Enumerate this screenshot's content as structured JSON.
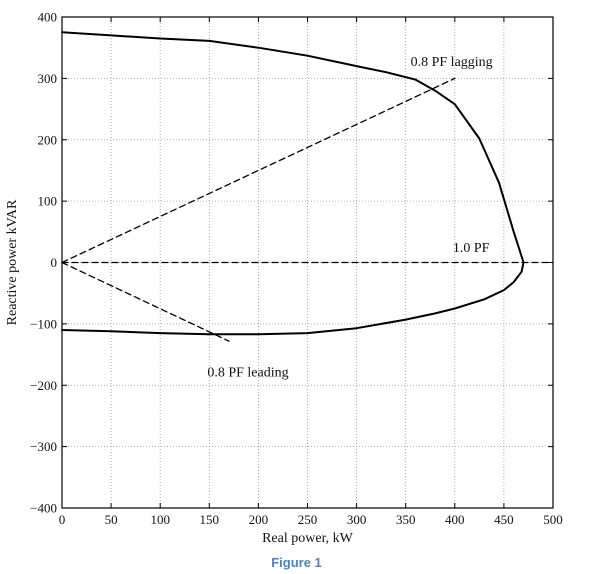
{
  "chart_data": {
    "type": "line",
    "xlabel": "Real power, kW",
    "ylabel": "Reactive power kVAR",
    "xlim": [
      0,
      500
    ],
    "ylim": [
      -400,
      400
    ],
    "x_ticks": [
      0,
      50,
      100,
      150,
      200,
      250,
      300,
      350,
      400,
      450,
      500
    ],
    "y_ticks": [
      400,
      300,
      200,
      100,
      0,
      -100,
      -200,
      -300,
      -400
    ],
    "x_tick_labels": [
      "0",
      "50",
      "100",
      "150",
      "200",
      "250",
      "300",
      "350",
      "400",
      "450",
      "500"
    ],
    "y_tick_labels": [
      "400",
      "300",
      "200",
      "100",
      "0",
      "−100",
      "−200",
      "−300",
      "−400"
    ],
    "grid": true,
    "series": [
      {
        "style": "solid",
        "x": [
          0,
          50,
          100,
          150,
          200,
          250,
          300,
          330,
          360,
          380,
          400,
          425,
          445,
          460,
          468,
          470,
          468,
          460,
          450,
          430,
          400,
          380,
          350,
          300,
          250,
          200,
          150,
          100,
          50,
          0
        ],
        "y": [
          375,
          370,
          365,
          361,
          350,
          337,
          320,
          310,
          298,
          280,
          258,
          202,
          130,
          50,
          10,
          0,
          -15,
          -32,
          -45,
          -60,
          -75,
          -83,
          -93,
          -107,
          -115,
          -117,
          -117,
          -115,
          -112,
          -110
        ]
      },
      {
        "style": "dashed",
        "x": [
          0,
          400
        ],
        "y": [
          0,
          300
        ]
      },
      {
        "style": "dashed",
        "x": [
          0,
          500
        ],
        "y": [
          0,
          0
        ]
      },
      {
        "style": "dashed",
        "x": [
          0,
          170
        ],
        "y": [
          0,
          -128
        ]
      }
    ],
    "annotations": [
      {
        "text": "0.8 PF lagging",
        "x": 355,
        "y": 320
      },
      {
        "text": "1.0 PF",
        "x": 398,
        "y": 17
      },
      {
        "text": "0.8 PF leading",
        "x": 148,
        "y": -186
      }
    ]
  },
  "caption": "Figure 1"
}
